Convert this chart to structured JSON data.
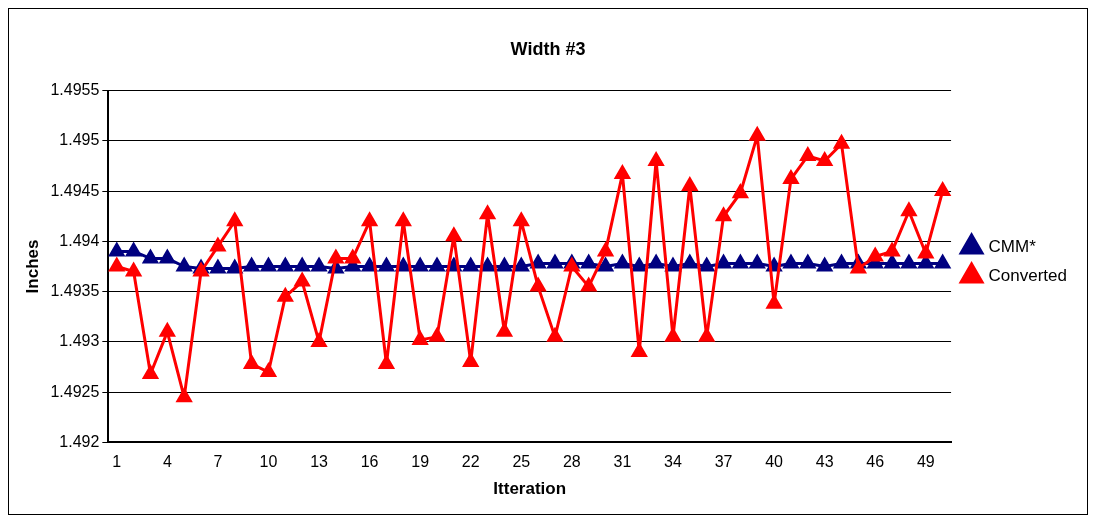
{
  "chart_data": {
    "type": "line",
    "title": "Width #3",
    "xlabel": "Itteration",
    "ylabel": "Inches",
    "categories": [
      "1",
      null,
      null,
      "4",
      null,
      null,
      "7",
      null,
      null,
      "10",
      null,
      null,
      "13",
      null,
      null,
      "16",
      null,
      null,
      "19",
      null,
      null,
      "22",
      null,
      null,
      "25",
      null,
      null,
      "28",
      null,
      null,
      "31",
      null,
      null,
      "34",
      null,
      null,
      "37",
      null,
      null,
      "40",
      null,
      null,
      "43",
      null,
      null,
      "46",
      null,
      null,
      "49",
      null
    ],
    "series": [
      {
        "name": "CMM*",
        "color": "#000080",
        "values": [
          1.4939,
          1.4939,
          1.49383,
          1.49383,
          1.49375,
          1.49373,
          1.49373,
          1.49373,
          1.49375,
          1.49375,
          1.49375,
          1.49375,
          1.49375,
          1.49373,
          1.49375,
          1.49375,
          1.49375,
          1.49375,
          1.49375,
          1.49375,
          1.49375,
          1.49375,
          1.49375,
          1.49375,
          1.49375,
          1.49378,
          1.49378,
          1.49378,
          1.49378,
          1.49375,
          1.49378,
          1.49375,
          1.49378,
          1.49375,
          1.49378,
          1.49375,
          1.49378,
          1.49378,
          1.49378,
          1.49375,
          1.49378,
          1.49378,
          1.49375,
          1.49378,
          1.49378,
          1.49378,
          1.49378,
          1.49378,
          1.49378,
          1.49378
        ]
      },
      {
        "name": "Converted",
        "color": "#ff0000",
        "values": [
          1.49375,
          1.4937,
          1.49268,
          1.4931,
          1.49245,
          1.4937,
          1.49395,
          1.4942,
          1.49278,
          1.4927,
          1.49345,
          1.4936,
          1.493,
          1.49383,
          1.49383,
          1.4942,
          1.49278,
          1.4942,
          1.49302,
          1.49305,
          1.49405,
          1.4928,
          1.49427,
          1.4931,
          1.4942,
          1.49355,
          1.49305,
          1.49375,
          1.49355,
          1.4939,
          1.49467,
          1.4929,
          1.4948,
          1.49305,
          1.49455,
          1.49305,
          1.49425,
          1.49448,
          1.49505,
          1.49338,
          1.49462,
          1.49485,
          1.4948,
          1.49497,
          1.49373,
          1.49385,
          1.4939,
          1.4943,
          1.49388,
          1.4945
        ]
      }
    ],
    "ylim": [
      1.492,
      1.4955
    ],
    "yticks": [
      1.492,
      1.4925,
      1.493,
      1.4935,
      1.494,
      1.4945,
      1.495,
      1.4955
    ],
    "grid": "y",
    "legend": "right",
    "marker": "triangle",
    "line_style": "solid"
  }
}
